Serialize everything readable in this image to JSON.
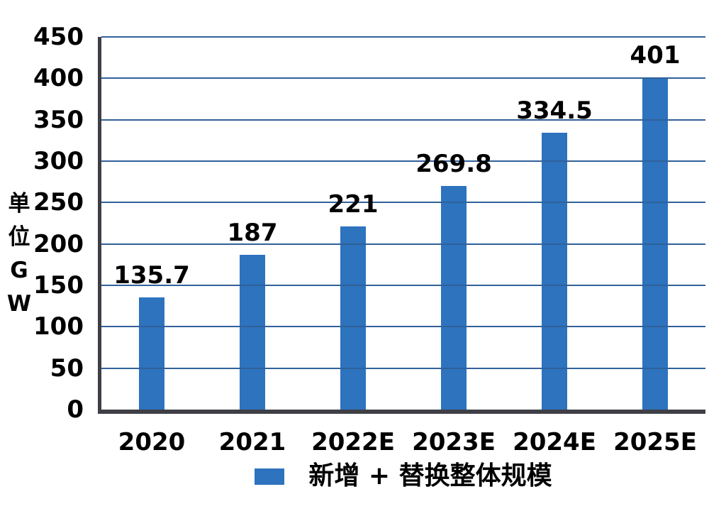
{
  "chart_data": {
    "type": "bar",
    "title": "",
    "unit_label": "单位GW",
    "unit_label_chars": [
      "单",
      "位",
      "G",
      "W"
    ],
    "categories": [
      "2020",
      "2021",
      "2022E",
      "2023E",
      "2024E",
      "2025E"
    ],
    "values": [
      135.7,
      187,
      221,
      269.8,
      334.5,
      401
    ],
    "value_labels": [
      "135.7",
      "187",
      "221",
      "269.8",
      "334.5",
      "401"
    ],
    "yticks": [
      0,
      50,
      100,
      150,
      200,
      250,
      300,
      350,
      400,
      450
    ],
    "ylim": [
      0,
      450
    ],
    "grid": true,
    "legend": {
      "label": "新增 + 替换整体规模",
      "position": "bottom"
    },
    "colors": {
      "bar": "#2D73BE",
      "gridline": "#31619A",
      "axis": "#3F3F46",
      "text": "#000000",
      "background": "#FFFFFF"
    }
  }
}
